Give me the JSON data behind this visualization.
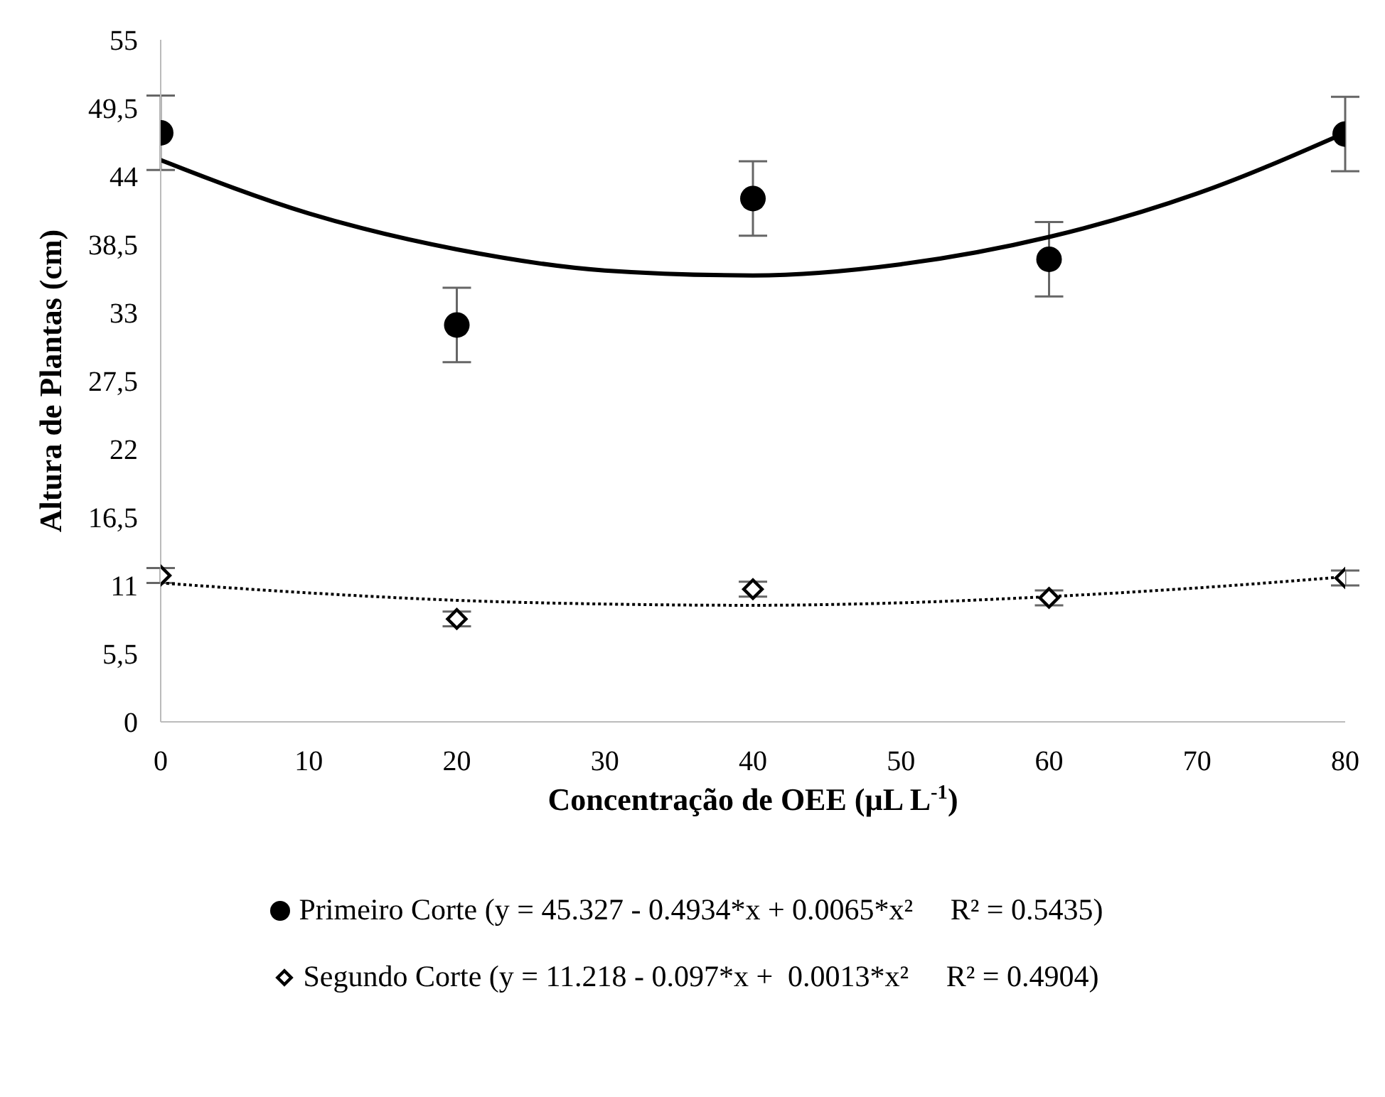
{
  "chart_data": {
    "type": "scatter",
    "xlabel": "Concentração de OEE (µL L$^{-1}$)",
    "ylabel": "Altura de Plantas (cm)",
    "xlim": [
      0,
      80
    ],
    "xticks": [
      0,
      10,
      20,
      30,
      40,
      50,
      60,
      70,
      80
    ],
    "ylim": [
      0,
      55
    ],
    "yticks": [
      0,
      {
        "value": 5.5,
        "label": "5,5"
      },
      11,
      {
        "value": 16.5,
        "label": "16,5"
      },
      22,
      {
        "value": 27.5,
        "label": "27,5"
      },
      33,
      {
        "value": 38.5,
        "label": "38,5"
      },
      44,
      {
        "value": 49.5,
        "label": "49,5"
      },
      55
    ],
    "grid": false,
    "legend": "bottom",
    "series": [
      {
        "name": "Primeiro Corte (y = 45.327 - 0.4934*x + 0.0065*x²     R² = 0.5435)",
        "marker": "circle",
        "color": "#000000",
        "x": [
          0,
          20,
          40,
          60,
          80
        ],
        "values": [
          47.5,
          32.0,
          42.2,
          37.3,
          47.4
        ],
        "errors": [
          3,
          3,
          3,
          3,
          3
        ]
      },
      {
        "name": "Segundo Corte (y = 11.218 - 0.097*x +  0.0013*x²     R² = 0.4904)",
        "marker": "diamond",
        "color": "#000000",
        "x": [
          0,
          20,
          40,
          60,
          80
        ],
        "values": [
          11.8,
          8.3,
          10.7,
          10.0,
          11.6
        ],
        "errors": [
          0.6,
          0.6,
          0.6,
          0.6,
          0.6
        ]
      },
      {
        "type": "line",
        "line_style": "solid",
        "marker": "none",
        "color": "#000000",
        "x": [
          0,
          10,
          20,
          30,
          40,
          50,
          60,
          70,
          80
        ],
        "values": [
          45.3,
          41.0,
          38.1,
          36.4,
          36.0,
          36.9,
          39.1,
          42.6,
          47.5
        ]
      },
      {
        "type": "line",
        "line_style": "dotted",
        "marker": "none",
        "color": "#000000",
        "x": [
          0,
          10,
          20,
          30,
          40,
          50,
          60,
          70,
          80
        ],
        "values": [
          11.2,
          10.4,
          9.8,
          9.5,
          9.4,
          9.6,
          10.1,
          10.8,
          11.7
        ]
      }
    ]
  }
}
